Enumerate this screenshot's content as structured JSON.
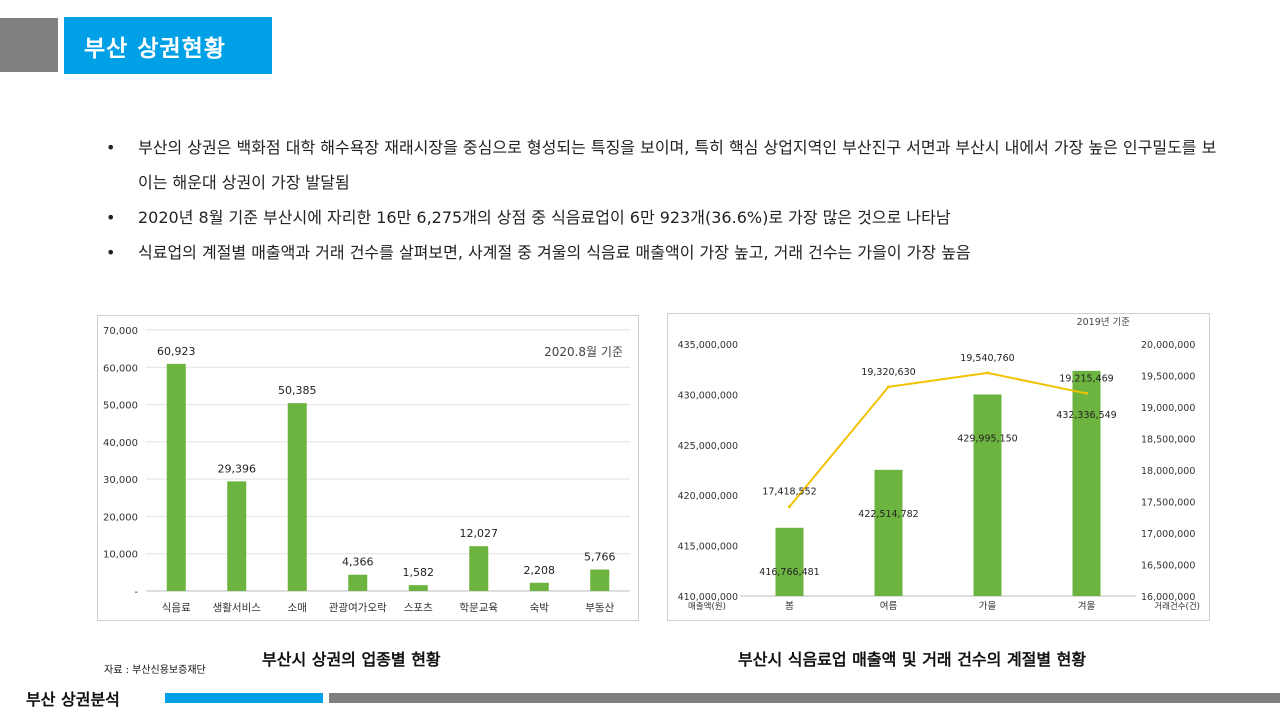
{
  "header": {
    "title": "부산 상권현황"
  },
  "bullets": [
    "부산의 상권은 백화점 대학 해수욕장 재래시장을 중심으로 형성되는 특징을 보이며, 특히 핵심 상업지역인 부산진구 서면과 부산시 내에서 가장 높은 인구밀도를 보이는 해운대 상권이 가장 발달됨",
    "2020년 8월 기준 부산시에 자리한 16만 6,275개의 상점 중 식음료업이 6만 923개(36.6%)로 가장 많은 것으로 나타남",
    "식료업의 계절별 매출액과 거래 건수를 살펴보면, 사계절 중 겨울의 식음료 매출액이 가장 높고, 거래 건수는 가을이 가장 높음"
  ],
  "captions": {
    "left": "부산시 상권의 업종별 현황",
    "right": "부산시 식음료업 매출액 및 거래 건수의 계절별 현황",
    "source": "자료 : 부산신용보증재단"
  },
  "footer": {
    "label": "부산 상권분석"
  },
  "colors": {
    "accent": "#00a0e6",
    "bar": "#6db33f",
    "line": "#f2c200",
    "gray": "#7f7f7f"
  },
  "chart_data": [
    {
      "type": "bar",
      "annotation": "2020.8월 기준",
      "categories": [
        "식음료",
        "생활서비스",
        "소매",
        "관광여가오락",
        "스포츠",
        "학문교육",
        "숙박",
        "부동산"
      ],
      "values": [
        60923,
        29396,
        50385,
        4366,
        1582,
        12027,
        2208,
        5766
      ],
      "value_labels": [
        "60,923",
        "29,396",
        "50,385",
        "4,366",
        "1,582",
        "12,027",
        "2,208",
        "5,766"
      ],
      "yticks": [
        "-",
        "10,000",
        "20,000",
        "30,000",
        "40,000",
        "50,000",
        "60,000",
        "70,000"
      ],
      "ylim": [
        0,
        70000
      ],
      "grid": true
    },
    {
      "type": "bar+line",
      "annotation": "2019년 기준",
      "categories": [
        "봄",
        "여름",
        "가을",
        "겨울"
      ],
      "bar_series": {
        "name": "매출액(원)",
        "values": [
          416766481,
          422514782,
          429995150,
          432336549
        ],
        "value_labels": [
          "416,766,481",
          "422,514,782",
          "429,995,150",
          "432,336,549"
        ]
      },
      "line_series": {
        "name": "거래건수(건)",
        "values": [
          17418552,
          19320630,
          19540760,
          19215469
        ],
        "value_labels": [
          "17,418,552",
          "19,320,630",
          "19,540,760",
          "19,215,469"
        ]
      },
      "yticks_left": [
        "410,000,000",
        "415,000,000",
        "420,000,000",
        "425,000,000",
        "430,000,000",
        "435,000,000"
      ],
      "yticks_right": [
        "16,000,000",
        "16,500,000",
        "17,000,000",
        "17,500,000",
        "18,000,000",
        "18,500,000",
        "19,000,000",
        "19,500,000",
        "20,000,000"
      ],
      "ylim_left": [
        410000000,
        435000000
      ],
      "ylim_right": [
        16000000,
        20000000
      ],
      "ylabel_left": "매출액(원)",
      "ylabel_right": "거래건수(건)"
    }
  ]
}
